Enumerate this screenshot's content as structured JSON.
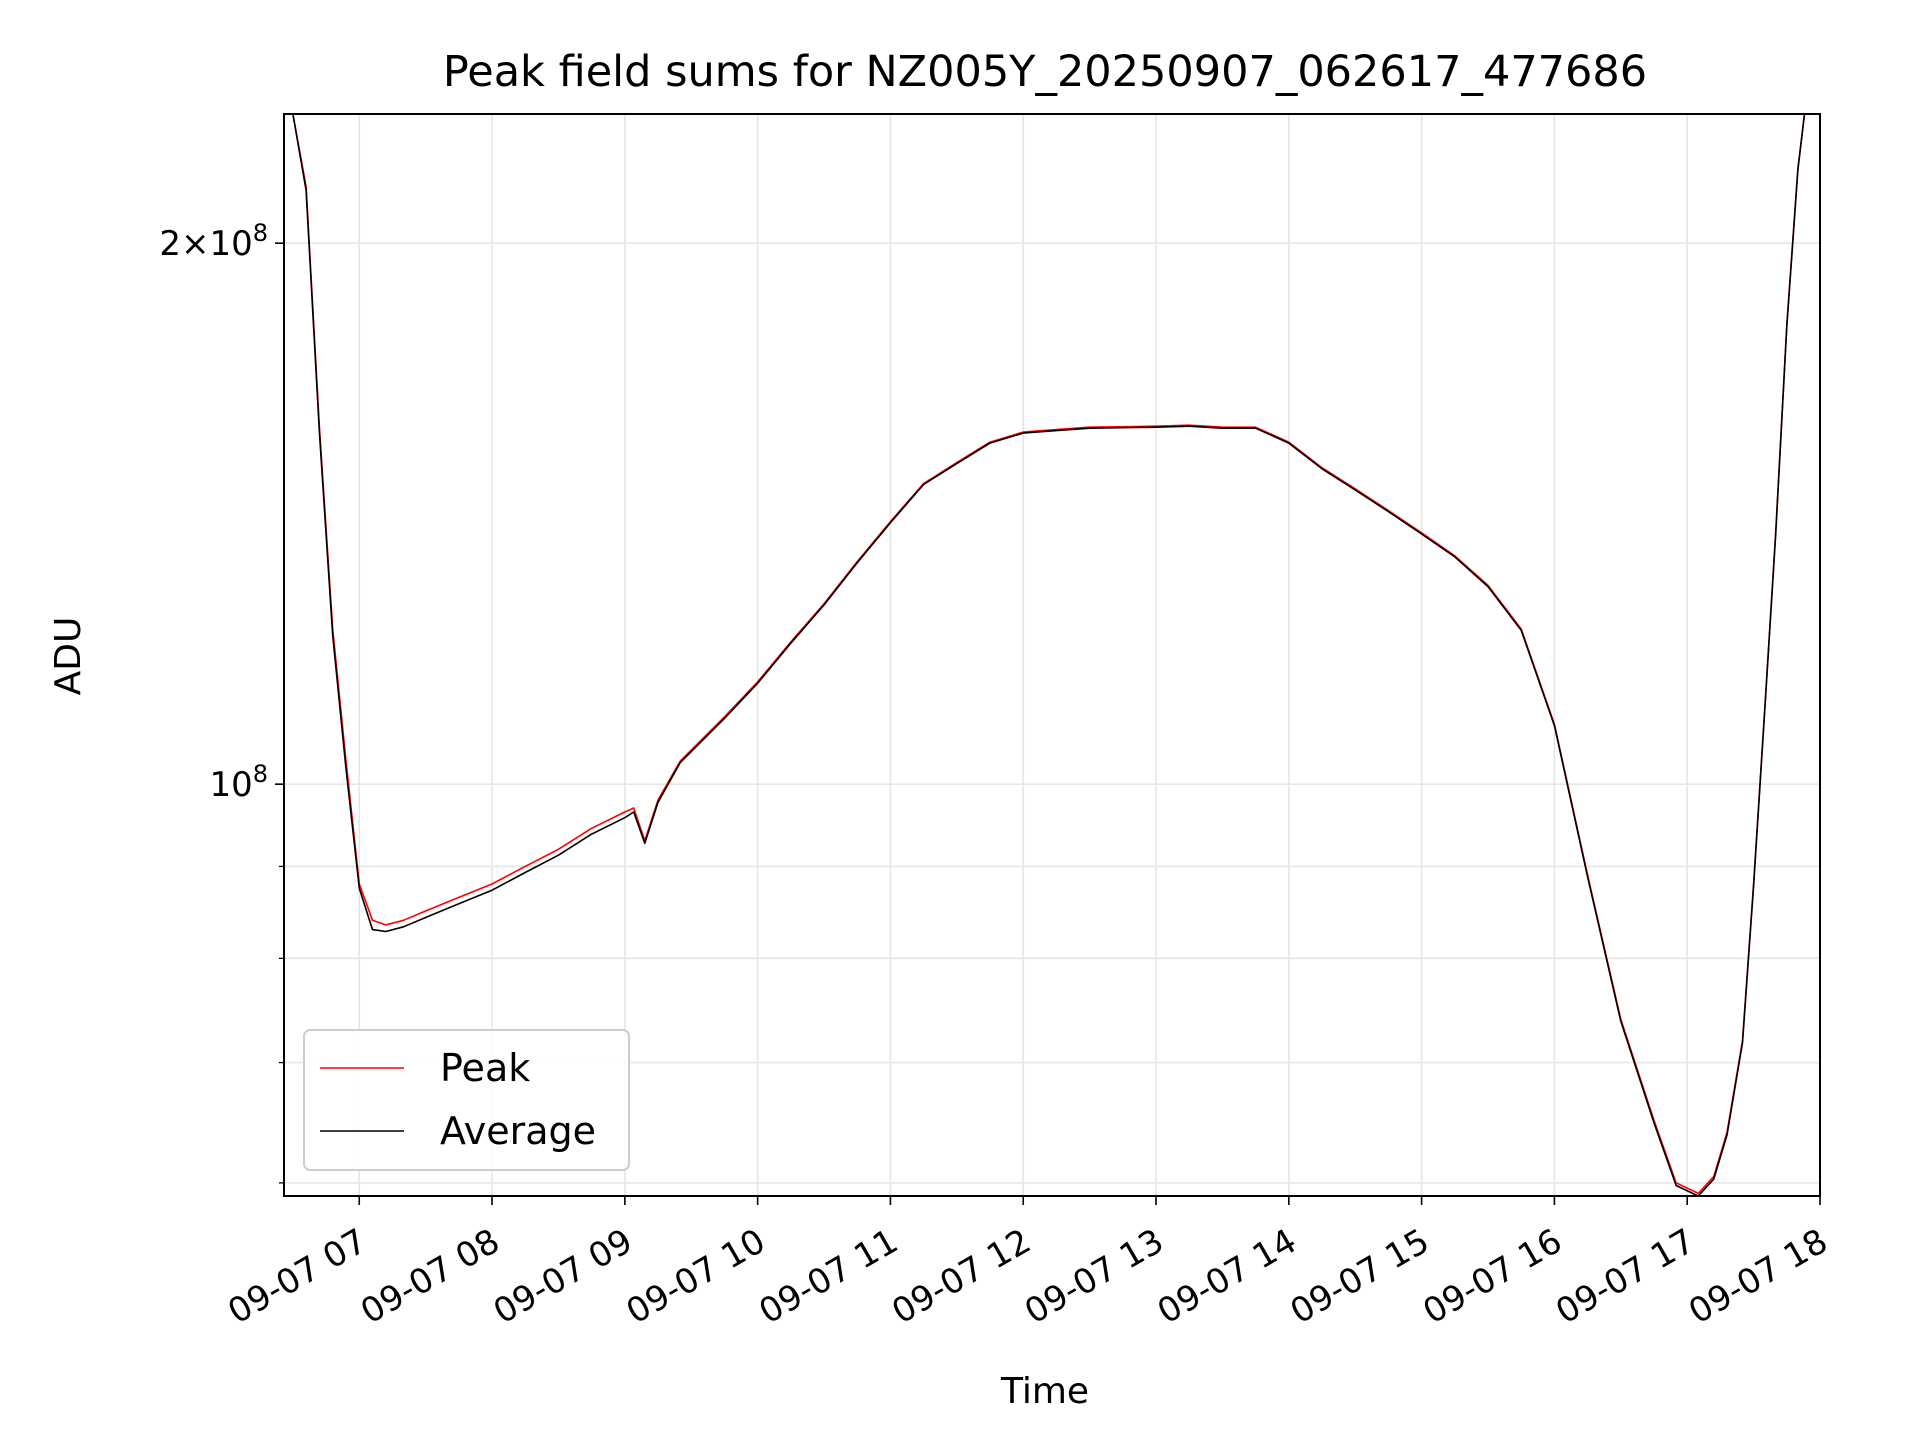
{
  "chart_data": {
    "type": "line",
    "title": "Peak field sums for NZ005Y_20250907_062617_477686",
    "xlabel": "Time",
    "ylabel": "ADU",
    "y_scale": "log",
    "ylim": [
      59000000,
      236000000
    ],
    "xlim": [
      "2025-09-07 06:26",
      "2025-09-07 18:00"
    ],
    "x_tick_labels": [
      "09-07 07",
      "09-07 08",
      "09-07 09",
      "09-07 10",
      "09-07 11",
      "09-07 12",
      "09-07 13",
      "09-07 14",
      "09-07 15",
      "09-07 16",
      "09-07 17",
      "09-07 18"
    ],
    "y_tick_labels": [
      "2×10^8",
      "10^8"
    ],
    "grid": true,
    "legend_position": "lower-left",
    "x": [
      "2025-09-07 06:26",
      "2025-09-07 06:30",
      "2025-09-07 06:36",
      "2025-09-07 06:42",
      "2025-09-07 06:48",
      "2025-09-07 06:54",
      "2025-09-07 07:00",
      "2025-09-07 07:06",
      "2025-09-07 07:12",
      "2025-09-07 07:20",
      "2025-09-07 07:30",
      "2025-09-07 07:45",
      "2025-09-07 08:00",
      "2025-09-07 08:15",
      "2025-09-07 08:30",
      "2025-09-07 08:45",
      "2025-09-07 09:00",
      "2025-09-07 09:04",
      "2025-09-07 09:09",
      "2025-09-07 09:15",
      "2025-09-07 09:25",
      "2025-09-07 09:45",
      "2025-09-07 10:00",
      "2025-09-07 10:15",
      "2025-09-07 10:30",
      "2025-09-07 10:45",
      "2025-09-07 11:00",
      "2025-09-07 11:15",
      "2025-09-07 11:30",
      "2025-09-07 11:45",
      "2025-09-07 12:00",
      "2025-09-07 12:15",
      "2025-09-07 12:30",
      "2025-09-07 13:00",
      "2025-09-07 13:15",
      "2025-09-07 13:30",
      "2025-09-07 13:45",
      "2025-09-07 14:00",
      "2025-09-07 14:15",
      "2025-09-07 14:30",
      "2025-09-07 14:45",
      "2025-09-07 15:00",
      "2025-09-07 15:15",
      "2025-09-07 15:30",
      "2025-09-07 15:45",
      "2025-09-07 16:00",
      "2025-09-07 16:15",
      "2025-09-07 16:30",
      "2025-09-07 16:45",
      "2025-09-07 16:55",
      "2025-09-07 17:05",
      "2025-09-07 17:12",
      "2025-09-07 17:18",
      "2025-09-07 17:25",
      "2025-09-07 17:30",
      "2025-09-07 17:35",
      "2025-09-07 17:40",
      "2025-09-07 17:45",
      "2025-09-07 17:50",
      "2025-09-07 17:53"
    ],
    "series": [
      {
        "name": "Peak",
        "color": "#ff0000",
        "values": [
          236000000,
          236000000,
          215000000,
          158000000,
          122000000,
          103000000,
          88000000,
          84000000,
          83500000,
          84000000,
          85000000,
          86500000,
          88000000,
          90000000,
          92000000,
          94500000,
          96500000,
          97000000,
          93000000,
          98000000,
          103000000,
          109000000,
          114000000,
          120000000,
          126000000,
          133000000,
          140000000,
          147000000,
          151000000,
          155000000,
          157000000,
          157500000,
          158000000,
          158200000,
          158400000,
          158000000,
          158000000,
          155000000,
          150000000,
          146000000,
          142000000,
          138000000,
          134000000,
          129000000,
          122000000,
          108000000,
          89000000,
          74000000,
          65000000,
          60000000,
          59200000,
          60500000,
          64000000,
          72000000,
          88000000,
          110000000,
          138000000,
          180000000,
          220000000,
          236000000
        ]
      },
      {
        "name": "Average",
        "color": "#000000",
        "values": [
          236000000,
          236000000,
          214000000,
          157000000,
          121000000,
          102000000,
          87500000,
          83000000,
          82800000,
          83300000,
          84300000,
          85800000,
          87300000,
          89300000,
          91300000,
          93800000,
          95800000,
          96500000,
          92700000,
          97700000,
          102800000,
          108800000,
          113800000,
          119800000,
          125800000,
          132800000,
          139800000,
          146800000,
          150800000,
          154800000,
          156800000,
          157300000,
          157800000,
          158000000,
          158200000,
          157800000,
          157800000,
          154800000,
          149800000,
          145800000,
          141800000,
          137800000,
          133800000,
          128800000,
          121800000,
          107800000,
          88800000,
          73800000,
          64800000,
          59800000,
          59000000,
          60300000,
          63800000,
          71800000,
          87800000,
          109800000,
          137800000,
          179800000,
          219800000,
          236000000
        ]
      }
    ]
  }
}
